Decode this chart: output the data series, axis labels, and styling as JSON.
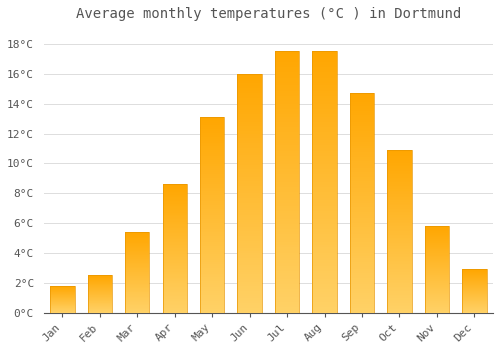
{
  "title": "Average monthly temperatures (°C ) in Dortmund",
  "months": [
    "Jan",
    "Feb",
    "Mar",
    "Apr",
    "May",
    "Jun",
    "Jul",
    "Aug",
    "Sep",
    "Oct",
    "Nov",
    "Dec"
  ],
  "temperatures": [
    1.8,
    2.5,
    5.4,
    8.6,
    13.1,
    16.0,
    17.5,
    17.5,
    14.7,
    10.9,
    5.8,
    2.9
  ],
  "bar_color_top": "#FFA500",
  "bar_color_bottom": "#FFD080",
  "bar_edge_color": "#E89500",
  "background_color": "#FFFFFF",
  "plot_bg_color": "#FFFFFF",
  "grid_color": "#DDDDDD",
  "text_color": "#555555",
  "ylim": [
    0,
    19
  ],
  "ytick_values": [
    0,
    2,
    4,
    6,
    8,
    10,
    12,
    14,
    16,
    18
  ],
  "title_fontsize": 10,
  "tick_fontsize": 8,
  "font_family": "monospace",
  "bar_width": 0.65
}
